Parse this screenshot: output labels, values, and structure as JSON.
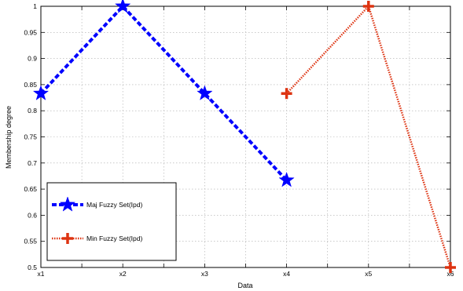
{
  "chart_data": {
    "type": "line",
    "categories": [
      "x1",
      "x2",
      "x3",
      "x4",
      "x5",
      "x6"
    ],
    "xlabel": "Data",
    "ylabel": "Membership degree",
    "ylim": [
      0.5,
      1
    ],
    "yticks": [
      "0.5",
      "0.55",
      "0.6",
      "0.65",
      "0.7",
      "0.75",
      "0.8",
      "0.85",
      "0.9",
      "0.95",
      "1"
    ],
    "grid": true,
    "legend_position": "bottom-left",
    "series": [
      {
        "name": "Maj Fuzzy Set(Ipd)",
        "x": [
          "x1",
          "x2",
          "x3",
          "x4"
        ],
        "values": [
          0.833,
          1.0,
          0.833,
          0.667
        ],
        "color": "#0000ff",
        "line_style": "dashed",
        "marker": "star"
      },
      {
        "name": "Min Fuzzy Set(Ipd)",
        "x": [
          "x4",
          "x5",
          "x6"
        ],
        "values": [
          0.833,
          1.0,
          0.5
        ],
        "color": "#dd3311",
        "line_style": "dotted",
        "marker": "plus"
      }
    ]
  }
}
